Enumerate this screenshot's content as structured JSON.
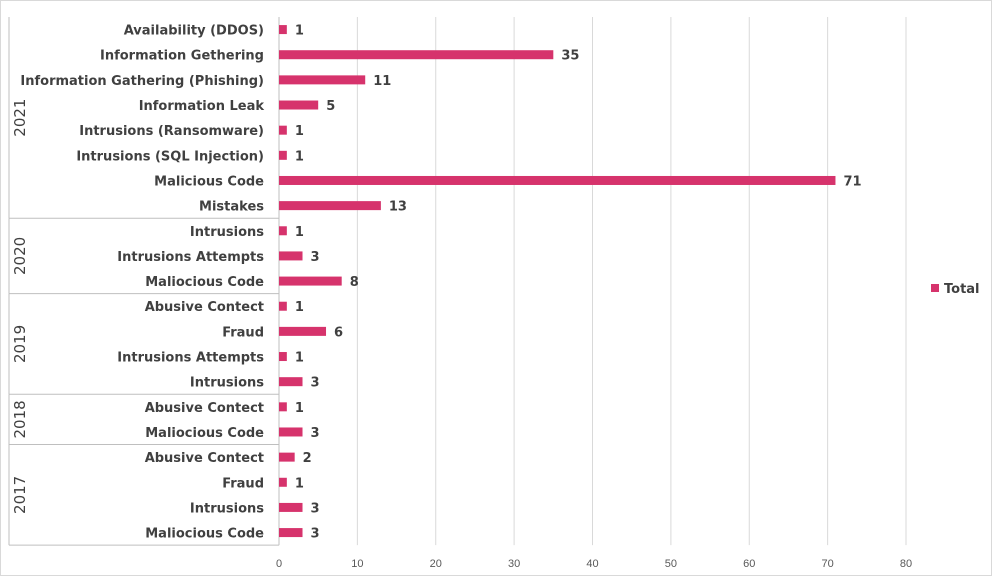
{
  "chart_data": {
    "type": "bar",
    "orientation": "horizontal",
    "title": "",
    "xlabel": "",
    "ylabel": "",
    "xlim": [
      0,
      80
    ],
    "x_ticks": [
      "0",
      "10",
      "20",
      "30",
      "40",
      "50",
      "60",
      "70",
      "80"
    ],
    "grid": "vertical",
    "legend": {
      "position": "right",
      "entries": [
        "Total"
      ]
    },
    "colors": {
      "bar": "#d6336c",
      "grid": "#d9d9d9",
      "text": "#404040",
      "axis": "#bfbfbf"
    },
    "groups": [
      {
        "year": "2021",
        "categories": [
          "Availability (DDOS)",
          "Information Gethering",
          "Information Gathering (Phishing)",
          "Information Leak",
          "Intrusions (Ransomware)",
          "Intrusions (SQL Injection)",
          "Malicious Code",
          "Mistakes"
        ],
        "values": [
          1,
          35,
          11,
          5,
          1,
          1,
          71,
          13
        ]
      },
      {
        "year": "2020",
        "categories": [
          "Intrusions",
          "Intrusions Attempts",
          "Maliocious Code"
        ],
        "values": [
          1,
          3,
          8
        ]
      },
      {
        "year": "2019",
        "categories": [
          "Abusive Contect",
          "Fraud",
          "Intrusions Attempts",
          "Intrusions"
        ],
        "values": [
          1,
          6,
          1,
          3
        ]
      },
      {
        "year": "2018",
        "categories": [
          "Abusive Contect",
          "Maliocious Code"
        ],
        "values": [
          1,
          3
        ]
      },
      {
        "year": "2017",
        "categories": [
          "Abusive Contect",
          "Fraud",
          "Intrusions",
          "Maliocious Code"
        ],
        "values": [
          2,
          1,
          3,
          3
        ]
      }
    ],
    "series": [
      {
        "name": "Total"
      }
    ]
  }
}
